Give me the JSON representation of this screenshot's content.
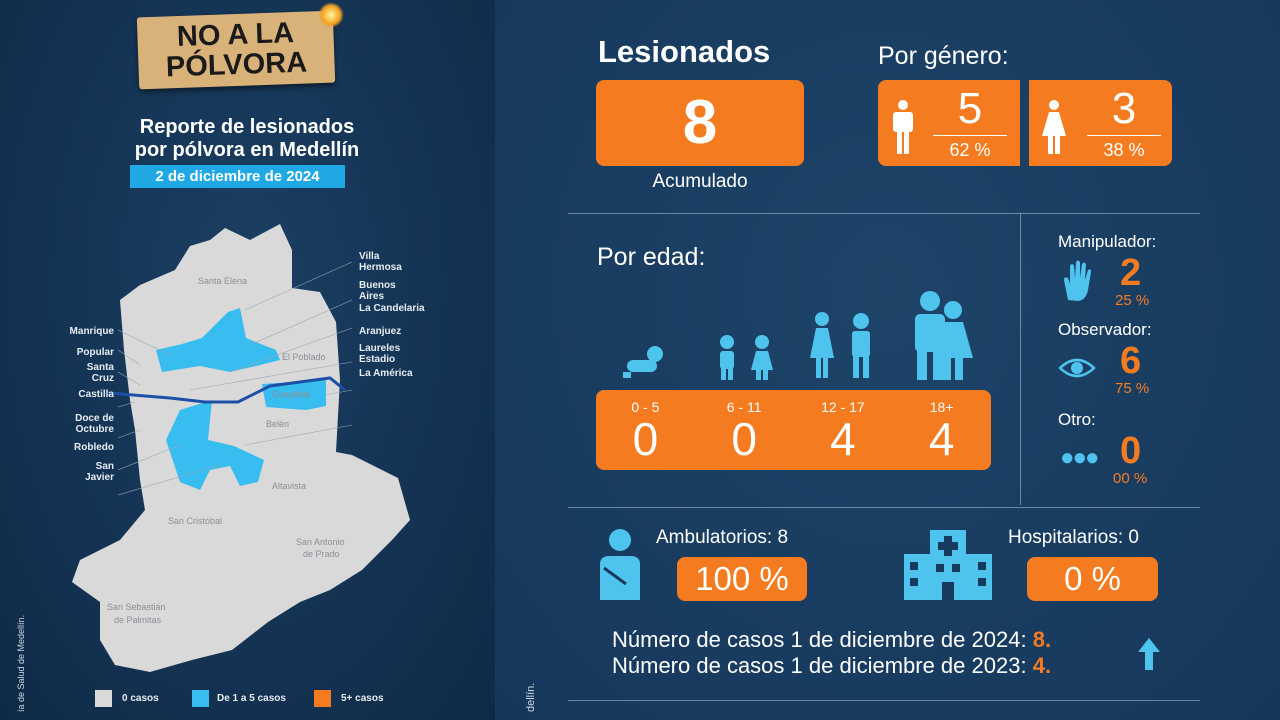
{
  "logo": {
    "line1": "NO A LA",
    "line2": "PÓLVORA"
  },
  "report": {
    "title_line1": "Reporte de lesionados",
    "title_line2": "por pólvora en Medellín",
    "date": "2 de diciembre de 2024"
  },
  "map": {
    "inside_labels": [
      "Santa Elena",
      "El Poblado",
      "Guayabal",
      "Belén",
      "Altavista",
      "San Cristóbal",
      "San Antonio",
      "de Prado",
      "San Sebastián",
      "de Palmitas"
    ],
    "left_labels": [
      "Manrique",
      "Popular",
      "Santa",
      "Cruz",
      "Castilla",
      "Doce de",
      "Octubre",
      "Robledo",
      "San",
      "Javier"
    ],
    "right_labels": [
      "Villa",
      "Hermosa",
      "Buenos",
      "Aires",
      "La Candelaria",
      "Aranjuez",
      "Laureles",
      "Estadio",
      "La América"
    ],
    "legend": [
      {
        "label": "0 casos",
        "color": "#d9d9d9"
      },
      {
        "label": "De 1 a 5 casos",
        "color": "#38bdf0"
      },
      {
        "label": "5+ casos",
        "color": "#f47b20"
      }
    ]
  },
  "source_left": "ía de Salud de Medellín.",
  "source_right": "dellín.",
  "injured": {
    "title": "Lesionados",
    "total": "8",
    "caption": "Acumulado"
  },
  "gender": {
    "title": "Por género:",
    "male": {
      "count": "5",
      "pct": "62 %"
    },
    "female": {
      "count": "3",
      "pct": "38 %"
    }
  },
  "age": {
    "title": "Por edad:",
    "groups": [
      {
        "range": "0 - 5",
        "count": "0"
      },
      {
        "range": "6 - 11",
        "count": "0"
      },
      {
        "range": "12 - 17",
        "count": "4"
      },
      {
        "range": "18+",
        "count": "4"
      }
    ]
  },
  "role": [
    {
      "label": "Manipulador:",
      "count": "2",
      "pct": "25 %"
    },
    {
      "label": "Observador:",
      "count": "6",
      "pct": "75 %"
    },
    {
      "label": "Otro:",
      "count": "0",
      "pct": "00 %"
    }
  ],
  "care": {
    "ambulatory_label": "Ambulatorios: 8",
    "ambulatory_pct": "100 %",
    "hospital_label": "Hospitalarios: 0",
    "hospital_pct": "0 %"
  },
  "comparison": {
    "line1": "Número de casos 1 de diciembre de 2024:",
    "value1": "8.",
    "line2": "Número de casos 1 de diciembre de 2023:",
    "value2": "4."
  },
  "colors": {
    "orange": "#f47b20",
    "cyan": "#38bdf0",
    "navy": "#173a5e"
  }
}
